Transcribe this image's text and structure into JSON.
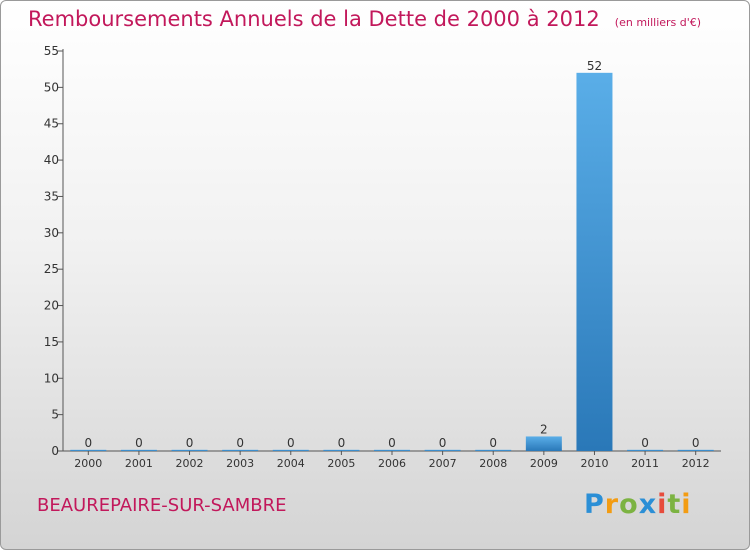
{
  "title": "Remboursements Annuels de la Dette de 2000 à 2012",
  "subtitle": "(en milliers d'€)",
  "commune": "BEAUREPAIRE-SUR-SAMBRE",
  "logo": {
    "text": "Proxiti",
    "letter_colors": [
      "#2b8fd6",
      "#f39c12",
      "#7cb342",
      "#2b8fd6",
      "#e74c3c",
      "#7cb342",
      "#f39c12"
    ]
  },
  "colors": {
    "title": "#c2185b",
    "bar_top": "#5aaee8",
    "bar_bottom": "#2a78b8",
    "axis": "#555555"
  },
  "chart_data": {
    "type": "bar",
    "categories": [
      "2000",
      "2001",
      "2002",
      "2003",
      "2004",
      "2005",
      "2006",
      "2007",
      "2008",
      "2009",
      "2010",
      "2011",
      "2012"
    ],
    "values": [
      0,
      0,
      0,
      0,
      0,
      0,
      0,
      0,
      0,
      2,
      52,
      0,
      0
    ],
    "ylim": [
      0,
      55
    ],
    "yticks": [
      0,
      5,
      10,
      15,
      20,
      25,
      30,
      35,
      40,
      45,
      50,
      55
    ],
    "grid": false,
    "legend": "none"
  }
}
